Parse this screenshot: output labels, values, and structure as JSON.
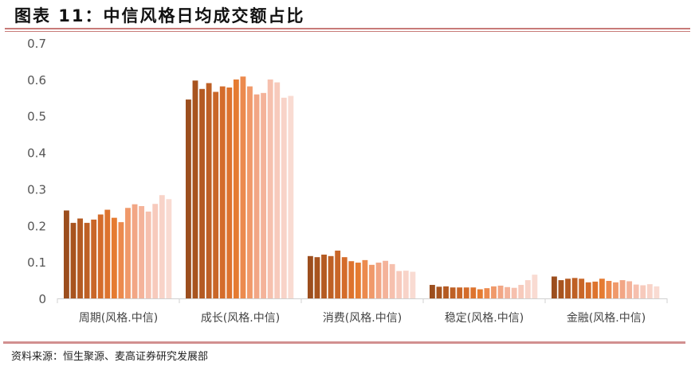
{
  "title": "图表 11：中信风格日均成交额占比",
  "source": "资料来源：恒生聚源、麦高证券研究发展部",
  "chart_data": {
    "type": "bar",
    "title": "",
    "xlabel": "",
    "ylabel": "",
    "ylim": [
      0,
      0.7
    ],
    "yticks": [
      "0",
      "0.1",
      "0.2",
      "0.3",
      "0.4",
      "0.5",
      "0.6",
      "0.7"
    ],
    "grid": false,
    "categories": [
      "周期(风格.中信)",
      "成长(风格.中信)",
      "消费(风格.中信)",
      "稳定(风格.中信)",
      "金融(风格.中信)"
    ],
    "bar_colors": [
      "#9C4E1E",
      "#A8541F",
      "#B45A22",
      "#BE6025",
      "#C96628",
      "#D46C2B",
      "#DD732E",
      "#E57B31",
      "#EC8A4E",
      "#F0996A",
      "#F2A685",
      "#F4B39A",
      "#F6C0AE",
      "#F7CABC",
      "#F8D3C8",
      "#F9DBD2"
    ],
    "series_values": [
      [
        0.241,
        0.207,
        0.219,
        0.207,
        0.216,
        0.23,
        0.243,
        0.221,
        0.209,
        0.248,
        0.258,
        0.253,
        0.238,
        0.259,
        0.283,
        0.272
      ],
      [
        0.545,
        0.597,
        0.574,
        0.59,
        0.566,
        0.581,
        0.578,
        0.6,
        0.608,
        0.581,
        0.559,
        0.563,
        0.6,
        0.592,
        0.55,
        0.555
      ],
      [
        0.116,
        0.113,
        0.12,
        0.116,
        0.131,
        0.113,
        0.102,
        0.098,
        0.105,
        0.092,
        0.098,
        0.103,
        0.094,
        0.075,
        0.076,
        0.073
      ],
      [
        0.037,
        0.032,
        0.033,
        0.03,
        0.03,
        0.03,
        0.03,
        0.025,
        0.028,
        0.033,
        0.035,
        0.031,
        0.029,
        0.037,
        0.05,
        0.065
      ],
      [
        0.06,
        0.05,
        0.054,
        0.056,
        0.054,
        0.044,
        0.046,
        0.054,
        0.048,
        0.044,
        0.05,
        0.047,
        0.038,
        0.036,
        0.039,
        0.033
      ]
    ]
  }
}
